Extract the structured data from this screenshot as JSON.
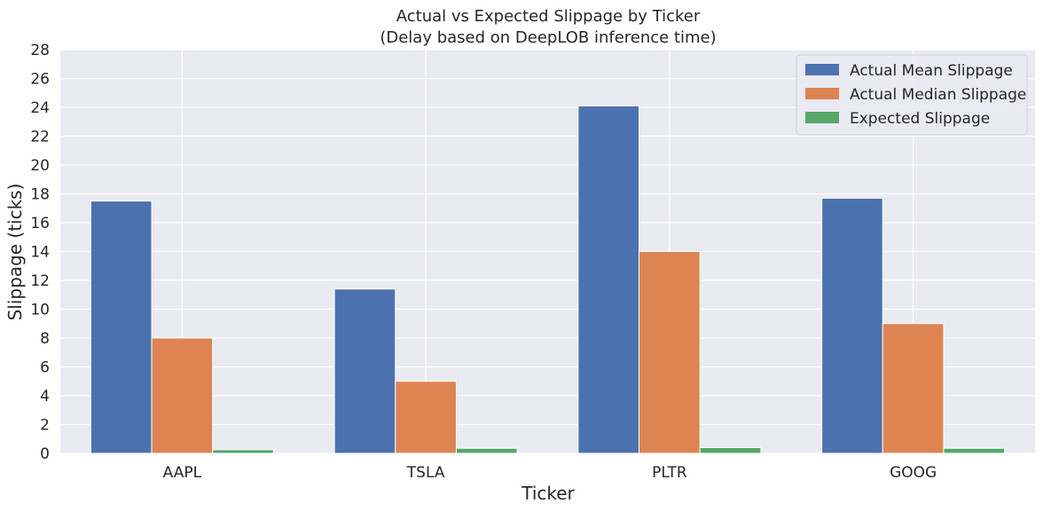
{
  "chart_data": {
    "type": "bar",
    "title": "Actual vs Expected Slippage by Ticker",
    "subtitle": "(Delay based on DeepLOB inference time)",
    "xlabel": "Ticker",
    "ylabel": "Slippage (ticks)",
    "categories": [
      "AAPL",
      "TSLA",
      "PLTR",
      "GOOG"
    ],
    "ylim": [
      0,
      28
    ],
    "yticks": [
      0,
      2,
      4,
      6,
      8,
      10,
      12,
      14,
      16,
      18,
      20,
      22,
      24,
      26,
      28
    ],
    "grid": true,
    "legend_position": "top-right",
    "series": [
      {
        "name": "Actual Mean Slippage",
        "color": "#4c72b0",
        "values": [
          17.5,
          11.4,
          24.1,
          17.7
        ]
      },
      {
        "name": "Actual Median Slippage",
        "color": "#dd8452",
        "values": [
          8,
          5,
          14,
          9
        ]
      },
      {
        "name": "Expected Slippage",
        "color": "#55a868",
        "values": [
          0.25,
          0.35,
          0.4,
          0.35
        ]
      }
    ],
    "plot_background": "#eaeaf2",
    "grid_color": "#ffffff"
  }
}
